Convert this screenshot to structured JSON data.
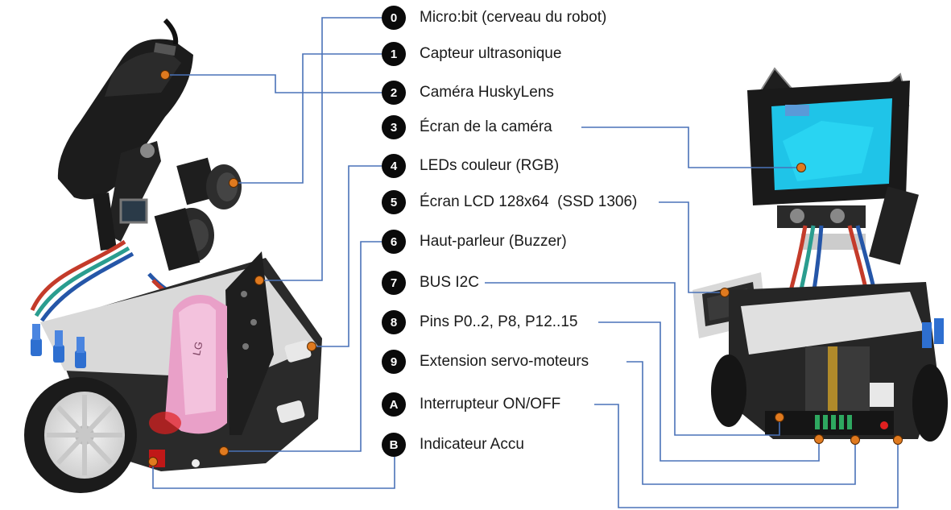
{
  "legend": [
    {
      "key": "0",
      "label": "Micro:bit (cerveau du robot)"
    },
    {
      "key": "1",
      "label": "Capteur ultrasonique"
    },
    {
      "key": "2",
      "label": "Caméra HuskyLens"
    },
    {
      "key": "3",
      "label": "Écran de la caméra"
    },
    {
      "key": "4",
      "label": "LEDs couleur (RGB)"
    },
    {
      "key": "5",
      "label": "Écran LCD 128x64  (SSD 1306)"
    },
    {
      "key": "6",
      "label": "Haut-parleur (Buzzer)"
    },
    {
      "key": "7",
      "label": "BUS I2C"
    },
    {
      "key": "8",
      "label": "Pins P0..2, P8, P12..15"
    },
    {
      "key": "9",
      "label": "Extension servo-moteurs"
    },
    {
      "key": "A",
      "label": "Interrupteur ON/OFF"
    },
    {
      "key": "B",
      "label": "Indicateur Accu"
    }
  ],
  "colors": {
    "connector_line": "#4a72b8",
    "marker_dot": "#e07a1f",
    "badge_fill": "#0a0a0a",
    "board_black": "#1b1b1b",
    "screen_cyan": "#1fc4e8",
    "battery_pink": "#e9a0c8",
    "led_red": "#e02020"
  },
  "battery_text": "LG"
}
